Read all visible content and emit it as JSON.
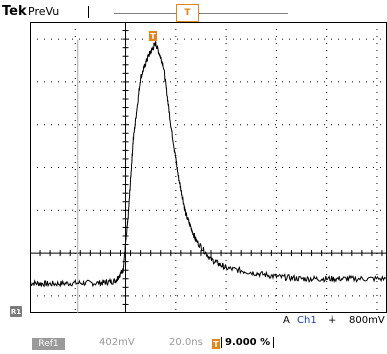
{
  "header": {
    "brand": "Tek",
    "mode": "PreVu",
    "trigger_position_glyph": "T"
  },
  "markers": {
    "trigger_point_glyph": "T",
    "ground_glyph": "R1"
  },
  "trigger_readout": {
    "coupling": "A",
    "source": "Ch1",
    "slope_symbol": "∔",
    "level": "800mV"
  },
  "status": {
    "ref_label": "Ref1",
    "volts_per_div": "402mV",
    "time_per_div": "20.0ns",
    "trigger_pct_glyph": "T",
    "trigger_position_pct": "9.000 %"
  },
  "colors": {
    "background": "#ffffff",
    "waveform": "#000000",
    "accent": "#e0861b",
    "ref_badge": "#9a9a9a"
  },
  "chart_data": {
    "type": "line",
    "title": "",
    "xlabel": "",
    "ylabel": "",
    "grid": true,
    "xlim": [
      -0.9,
      6.2
    ],
    "ylim": [
      -1.4,
      5.4
    ],
    "series": [
      {
        "values_x": [
          -0.9,
          -0.5,
          0,
          0.5,
          0.8,
          0.95,
          1.05,
          1.15,
          1.3,
          1.45,
          1.6,
          1.75,
          1.9,
          2.05,
          2.2,
          2.4,
          2.7,
          3.0,
          3.5,
          4.0,
          4.5,
          5.0,
          5.5,
          6.2
        ],
        "values_y": [
          -0.7,
          -0.72,
          -0.7,
          -0.7,
          -0.65,
          -0.4,
          0.8,
          2.6,
          4.1,
          4.6,
          4.9,
          4.4,
          3.0,
          1.8,
          0.9,
          0.3,
          -0.15,
          -0.35,
          -0.45,
          -0.55,
          -0.6,
          -0.6,
          -0.6,
          -0.6
        ]
      }
    ]
  }
}
